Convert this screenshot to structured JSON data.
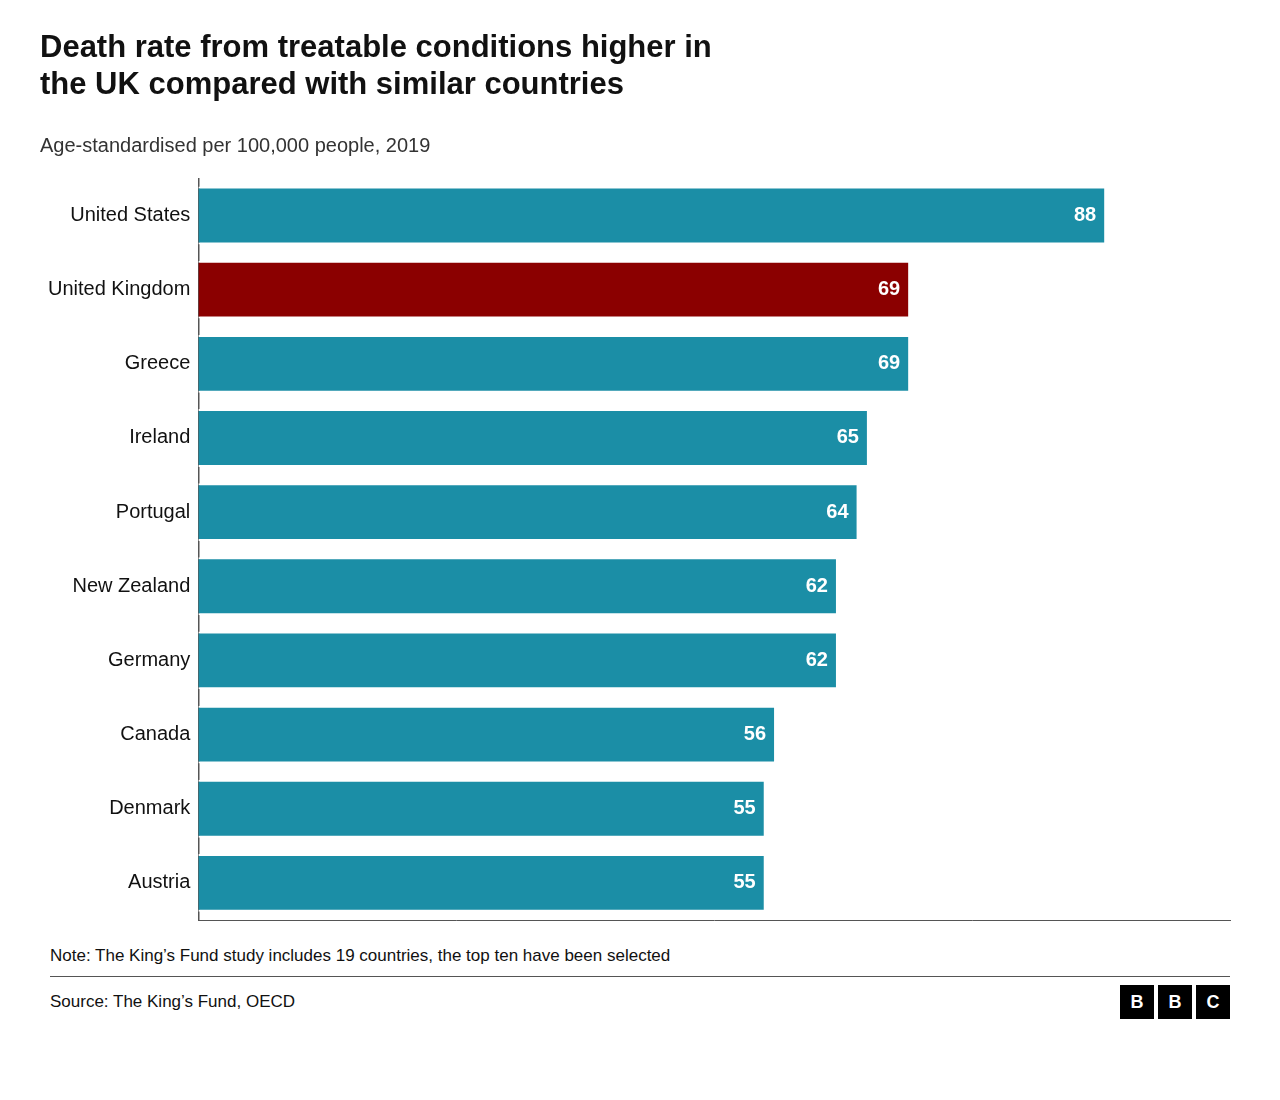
{
  "chart_data": {
    "type": "bar",
    "orientation": "horizontal",
    "title": "Death rate from treatable conditions higher in\nthe UK compared with similar countries",
    "subtitle": "Age-standardised per 100,000 people, 2019",
    "annotations": [
      "Note: The King’s Fund study includes 19 countries, the top ten have been selected",
      "Source: The King’s Fund, OECD",
      "BBC"
    ],
    "categories": [
      "United States",
      "United Kingdom",
      "Greece",
      "Ireland",
      "Portugal",
      "New Zealand",
      "Germany",
      "Canada",
      "Denmark",
      "Austria"
    ],
    "values": [
      88,
      69,
      69,
      65,
      64,
      62,
      62,
      56,
      55,
      55
    ],
    "colors": [
      "#1b8ea6",
      "#8b0000",
      "#1b8ea6",
      "#1b8ea6",
      "#1b8ea6",
      "#1b8ea6",
      "#1b8ea6",
      "#1b8ea6",
      "#1b8ea6",
      "#1b8ea6"
    ],
    "xlim": [
      0,
      100
    ],
    "grid": false,
    "data_labels": true,
    "tick_labels": "y"
  }
}
